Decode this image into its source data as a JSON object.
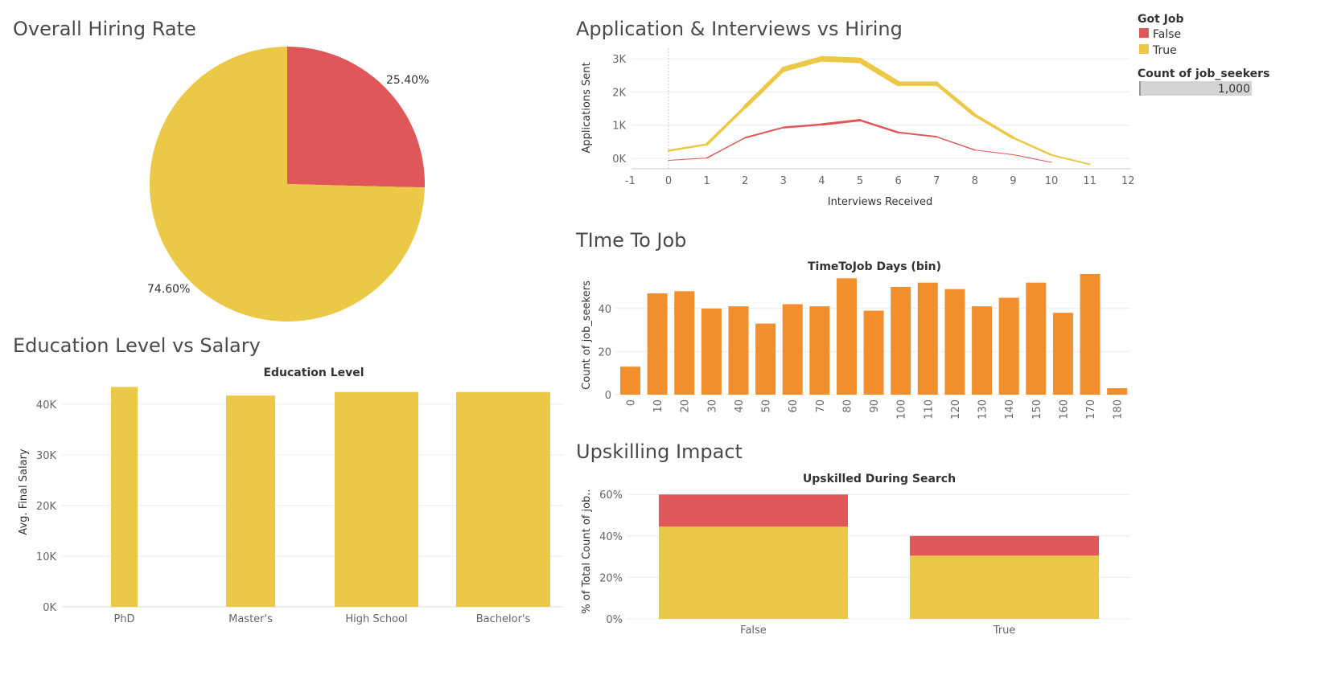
{
  "colors": {
    "false": "#e05759",
    "true": "#ebc946",
    "orange": "#f28e2b"
  },
  "legend": {
    "title": "Got Job",
    "items": [
      {
        "label": "False",
        "color": "#e05759"
      },
      {
        "label": "True",
        "color": "#ebc946"
      }
    ],
    "size_title": "Count of job_seekers",
    "size_value": "1,000"
  },
  "pie": {
    "title": "Overall Hiring Rate",
    "slices": [
      {
        "name": "False",
        "label": "25.40%",
        "value": 25.4,
        "color": "#e05759"
      },
      {
        "name": "True",
        "label": "74.60%",
        "value": 74.6,
        "color": "#ebc946"
      }
    ]
  },
  "edu": {
    "title": "Education Level vs Salary",
    "header": "Education Level",
    "ylabel": "Avg. Final Salary",
    "yticks": [
      "0K",
      "10K",
      "20K",
      "30K",
      "40K"
    ]
  },
  "line": {
    "title": "Application & Interviews vs Hiring",
    "ylabel": "Applications Sent",
    "xlabel": "Interviews Received",
    "yticks": [
      "0K",
      "1K",
      "2K",
      "3K"
    ],
    "xticks": [
      "-1",
      "0",
      "1",
      "2",
      "3",
      "4",
      "5",
      "6",
      "7",
      "8",
      "9",
      "10",
      "11",
      "12"
    ]
  },
  "ttj": {
    "title": "TIme To Job",
    "header": "TimeToJob Days (bin)",
    "ylabel": "Count of job_seekers",
    "yticks": [
      "0",
      "20",
      "40"
    ]
  },
  "up": {
    "title": "Upskilling Impact",
    "header": "Upskilled During Search",
    "ylabel": "% of Total Count of job..",
    "yticks": [
      "0%",
      "20%",
      "40%",
      "60%"
    ]
  },
  "chart_data": [
    {
      "type": "pie",
      "title": "Overall Hiring Rate",
      "categories": [
        "False",
        "True"
      ],
      "values": [
        25.4,
        74.6
      ]
    },
    {
      "type": "line",
      "title": "Application & Interviews vs Hiring",
      "xlabel": "Interviews Received",
      "ylabel": "Applications Sent",
      "xlim": [
        -1,
        12
      ],
      "ylim": [
        0,
        3200
      ],
      "series": [
        {
          "name": "True",
          "x": [
            0,
            1,
            2,
            3,
            4,
            5,
            6,
            7,
            8,
            9,
            10,
            11
          ],
          "values": [
            230,
            420,
            1550,
            2680,
            3000,
            2950,
            2250,
            2250,
            1300,
            620,
            100,
            -180
          ],
          "widths": [
            2,
            3,
            4,
            6,
            7,
            7,
            6,
            5,
            4,
            3,
            2,
            2
          ]
        },
        {
          "name": "False",
          "x": [
            0,
            1,
            2,
            3,
            4,
            5,
            6,
            7,
            8,
            9,
            10
          ],
          "values": [
            -60,
            10,
            620,
            930,
            1020,
            1150,
            780,
            650,
            250,
            110,
            -120
          ],
          "widths": [
            1,
            1,
            2,
            2,
            3,
            3,
            2,
            2,
            1,
            1,
            1
          ]
        }
      ]
    },
    {
      "type": "bar",
      "title": "TIme To Job",
      "xlabel": "TimeToJob Days (bin)",
      "ylabel": "Count of job_seekers",
      "categories": [
        "0",
        "10",
        "20",
        "30",
        "40",
        "50",
        "60",
        "70",
        "80",
        "90",
        "100",
        "110",
        "120",
        "130",
        "140",
        "150",
        "160",
        "170",
        "180"
      ],
      "values": [
        13,
        47,
        48,
        40,
        41,
        33,
        42,
        41,
        54,
        39,
        50,
        52,
        49,
        41,
        45,
        52,
        38,
        56,
        3
      ],
      "ylim": [
        0,
        58
      ]
    },
    {
      "type": "bar",
      "title": "Education Level vs Salary",
      "xlabel": "Education Level",
      "ylabel": "Avg. Final Salary",
      "categories": [
        "PhD",
        "Master's",
        "High School",
        "Bachelor's"
      ],
      "values": [
        43400,
        41700,
        42400,
        42400
      ],
      "ylim": [
        0,
        45000
      ]
    },
    {
      "type": "bar",
      "title": "Upskilling Impact",
      "xlabel": "Upskilled During Search",
      "ylabel": "% of Total Count of job..",
      "categories": [
        "False",
        "True"
      ],
      "series": [
        {
          "name": "True",
          "values": [
            44.5,
            30.5
          ]
        },
        {
          "name": "False",
          "values": [
            15.5,
            9.5
          ]
        }
      ],
      "stacked": true,
      "ylim": [
        0,
        62
      ]
    }
  ]
}
